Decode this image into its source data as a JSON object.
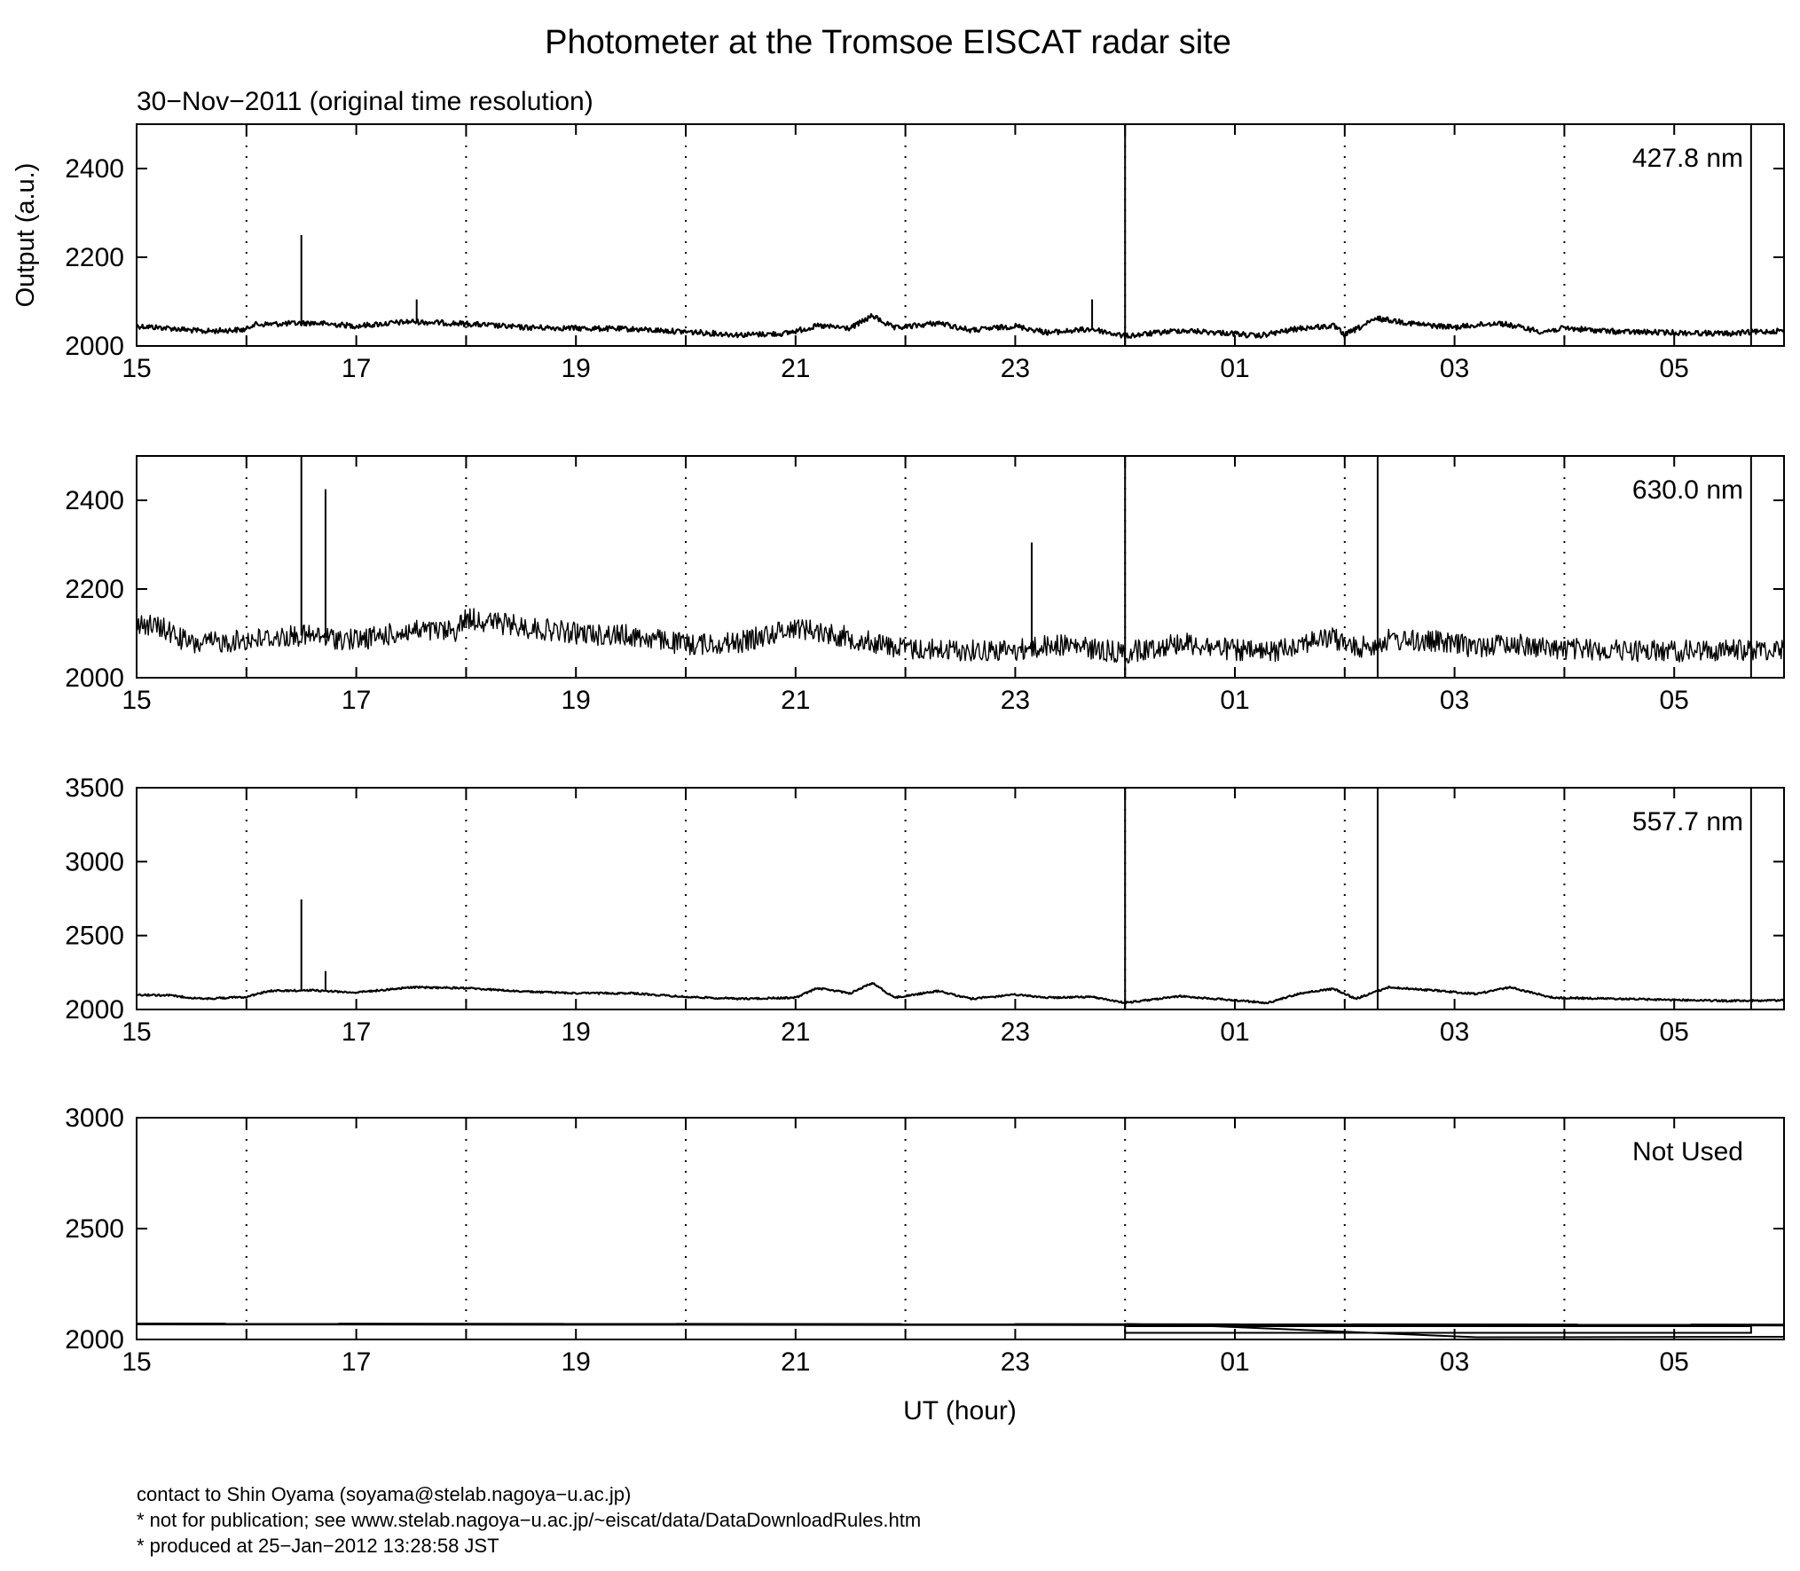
{
  "chart_data": {
    "type": "line",
    "title": "Photometer at the Tromsoe EISCAT radar site",
    "subtitle": "30−Nov−2011 (original time resolution)",
    "ylabel": "Output (a.u.)",
    "xlabel": "UT (hour)",
    "x_ticks": [
      "15",
      "17",
      "19",
      "21",
      "23",
      "01",
      "03",
      "05"
    ],
    "x_range_ut_hours_continuous": [
      15,
      30
    ],
    "grid": "vertical dotted lines at each hour",
    "panels": [
      {
        "label": "427.8 nm",
        "ylim": [
          2000,
          2500
        ],
        "y_ticks": [
          2000,
          2200,
          2400
        ],
        "baseline_points": [
          [
            15,
            2045
          ],
          [
            15.3,
            2040
          ],
          [
            15.6,
            2033
          ],
          [
            16,
            2037
          ],
          [
            16.05,
            2048
          ],
          [
            16.6,
            2052
          ],
          [
            17,
            2045
          ],
          [
            17.5,
            2055
          ],
          [
            18,
            2050
          ],
          [
            18.5,
            2042
          ],
          [
            19,
            2040
          ],
          [
            19.5,
            2038
          ],
          [
            20,
            2032
          ],
          [
            20.5,
            2025
          ],
          [
            20.9,
            2028
          ],
          [
            21.2,
            2045
          ],
          [
            21.5,
            2040
          ],
          [
            21.7,
            2068
          ],
          [
            21.9,
            2040
          ],
          [
            22.3,
            2052
          ],
          [
            22.6,
            2035
          ],
          [
            23,
            2045
          ],
          [
            23.3,
            2030
          ],
          [
            23.7,
            2038
          ],
          [
            24,
            2022
          ],
          [
            24.5,
            2035
          ],
          [
            25,
            2028
          ],
          [
            25.2,
            2022
          ],
          [
            25.6,
            2040
          ],
          [
            25.9,
            2045
          ],
          [
            26,
            2025
          ],
          [
            26.3,
            2062
          ],
          [
            26.7,
            2048
          ],
          [
            27,
            2042
          ],
          [
            27.4,
            2052
          ],
          [
            27.8,
            2032
          ],
          [
            28,
            2040
          ],
          [
            28.5,
            2032
          ],
          [
            29,
            2030
          ],
          [
            29.5,
            2028
          ],
          [
            30,
            2035
          ]
        ],
        "spikes": [
          [
            16.5,
            2250
          ],
          [
            17.55,
            2105
          ],
          [
            23.7,
            2105
          ]
        ],
        "vertical_lines_ut": [
          24.0,
          29.7
        ]
      },
      {
        "label": "630.0 nm",
        "ylim": [
          2000,
          2500
        ],
        "y_ticks": [
          2000,
          2200,
          2400
        ],
        "baseline_points": [
          [
            15,
            2125
          ],
          [
            15.25,
            2110
          ],
          [
            15.5,
            2075
          ],
          [
            16,
            2085
          ],
          [
            16.5,
            2095
          ],
          [
            17,
            2085
          ],
          [
            17.5,
            2105
          ],
          [
            17.9,
            2105
          ],
          [
            18,
            2135
          ],
          [
            18.5,
            2115
          ],
          [
            19,
            2100
          ],
          [
            19.5,
            2095
          ],
          [
            20,
            2075
          ],
          [
            20.5,
            2080
          ],
          [
            21,
            2115
          ],
          [
            21.5,
            2090
          ],
          [
            22,
            2065
          ],
          [
            22.5,
            2062
          ],
          [
            23,
            2062
          ],
          [
            23.4,
            2075
          ],
          [
            24,
            2055
          ],
          [
            24.5,
            2080
          ],
          [
            25,
            2062
          ],
          [
            25.3,
            2055
          ],
          [
            25.6,
            2080
          ],
          [
            25.9,
            2090
          ],
          [
            26.1,
            2065
          ],
          [
            26.4,
            2085
          ],
          [
            26.8,
            2082
          ],
          [
            27.2,
            2070
          ],
          [
            27.5,
            2078
          ],
          [
            27.9,
            2065
          ],
          [
            28.5,
            2062
          ],
          [
            29,
            2060
          ],
          [
            29.5,
            2062
          ],
          [
            30,
            2065
          ]
        ],
        "noise_amplitude": 25,
        "spikes": [
          [
            16.5,
            2500
          ],
          [
            16.72,
            2425
          ],
          [
            23.15,
            2305
          ]
        ],
        "vertical_lines_ut": [
          24.0,
          26.3,
          29.7
        ]
      },
      {
        "label": "557.7 nm",
        "ylim": [
          2000,
          3500
        ],
        "y_ticks": [
          2000,
          2500,
          3000,
          3500
        ],
        "baseline_points": [
          [
            15,
            2100
          ],
          [
            15.3,
            2095
          ],
          [
            15.6,
            2072
          ],
          [
            16,
            2085
          ],
          [
            16.2,
            2125
          ],
          [
            16.6,
            2130
          ],
          [
            17,
            2115
          ],
          [
            17.5,
            2150
          ],
          [
            18,
            2145
          ],
          [
            18.5,
            2122
          ],
          [
            19,
            2110
          ],
          [
            19.5,
            2110
          ],
          [
            20,
            2085
          ],
          [
            20.5,
            2072
          ],
          [
            21,
            2080
          ],
          [
            21.2,
            2145
          ],
          [
            21.5,
            2110
          ],
          [
            21.7,
            2180
          ],
          [
            21.9,
            2080
          ],
          [
            22.3,
            2125
          ],
          [
            22.6,
            2072
          ],
          [
            23,
            2100
          ],
          [
            23.3,
            2080
          ],
          [
            23.7,
            2085
          ],
          [
            24,
            2045
          ],
          [
            24.5,
            2090
          ],
          [
            25,
            2062
          ],
          [
            25.3,
            2045
          ],
          [
            25.6,
            2110
          ],
          [
            25.9,
            2140
          ],
          [
            26.1,
            2072
          ],
          [
            26.4,
            2150
          ],
          [
            26.8,
            2130
          ],
          [
            27.2,
            2105
          ],
          [
            27.5,
            2150
          ],
          [
            27.9,
            2080
          ],
          [
            28.5,
            2072
          ],
          [
            29,
            2065
          ],
          [
            29.5,
            2058
          ],
          [
            30,
            2062
          ]
        ],
        "spikes": [
          [
            16.5,
            2745
          ],
          [
            16.72,
            2260
          ]
        ],
        "vertical_lines_ut": [
          24.0,
          26.3,
          29.7
        ]
      },
      {
        "label": "Not Used",
        "ylim": [
          2000,
          3000
        ],
        "y_ticks": [
          2000,
          2500,
          3000
        ],
        "baseline_points": [
          [
            15,
            2070
          ],
          [
            30,
            2065
          ]
        ],
        "trace_points": [
          [
            24,
            2070
          ],
          [
            24.8,
            2060
          ],
          [
            27.2,
            2010
          ],
          [
            30,
            2012
          ]
        ],
        "box_ut": [
          24.0,
          29.7
        ],
        "box_y": [
          2030,
          2060
        ],
        "vertical_lines_ut": []
      }
    ]
  },
  "footer": {
    "contact": "contact to Shin Oyama (soyama@stelab.nagoya−u.ac.jp)",
    "notice": "* not for publication; see www.stelab.nagoya−u.ac.jp/~eiscat/data/DataDownloadRules.htm",
    "produced": "* produced at 25−Jan−2012 13:28:58 JST"
  }
}
